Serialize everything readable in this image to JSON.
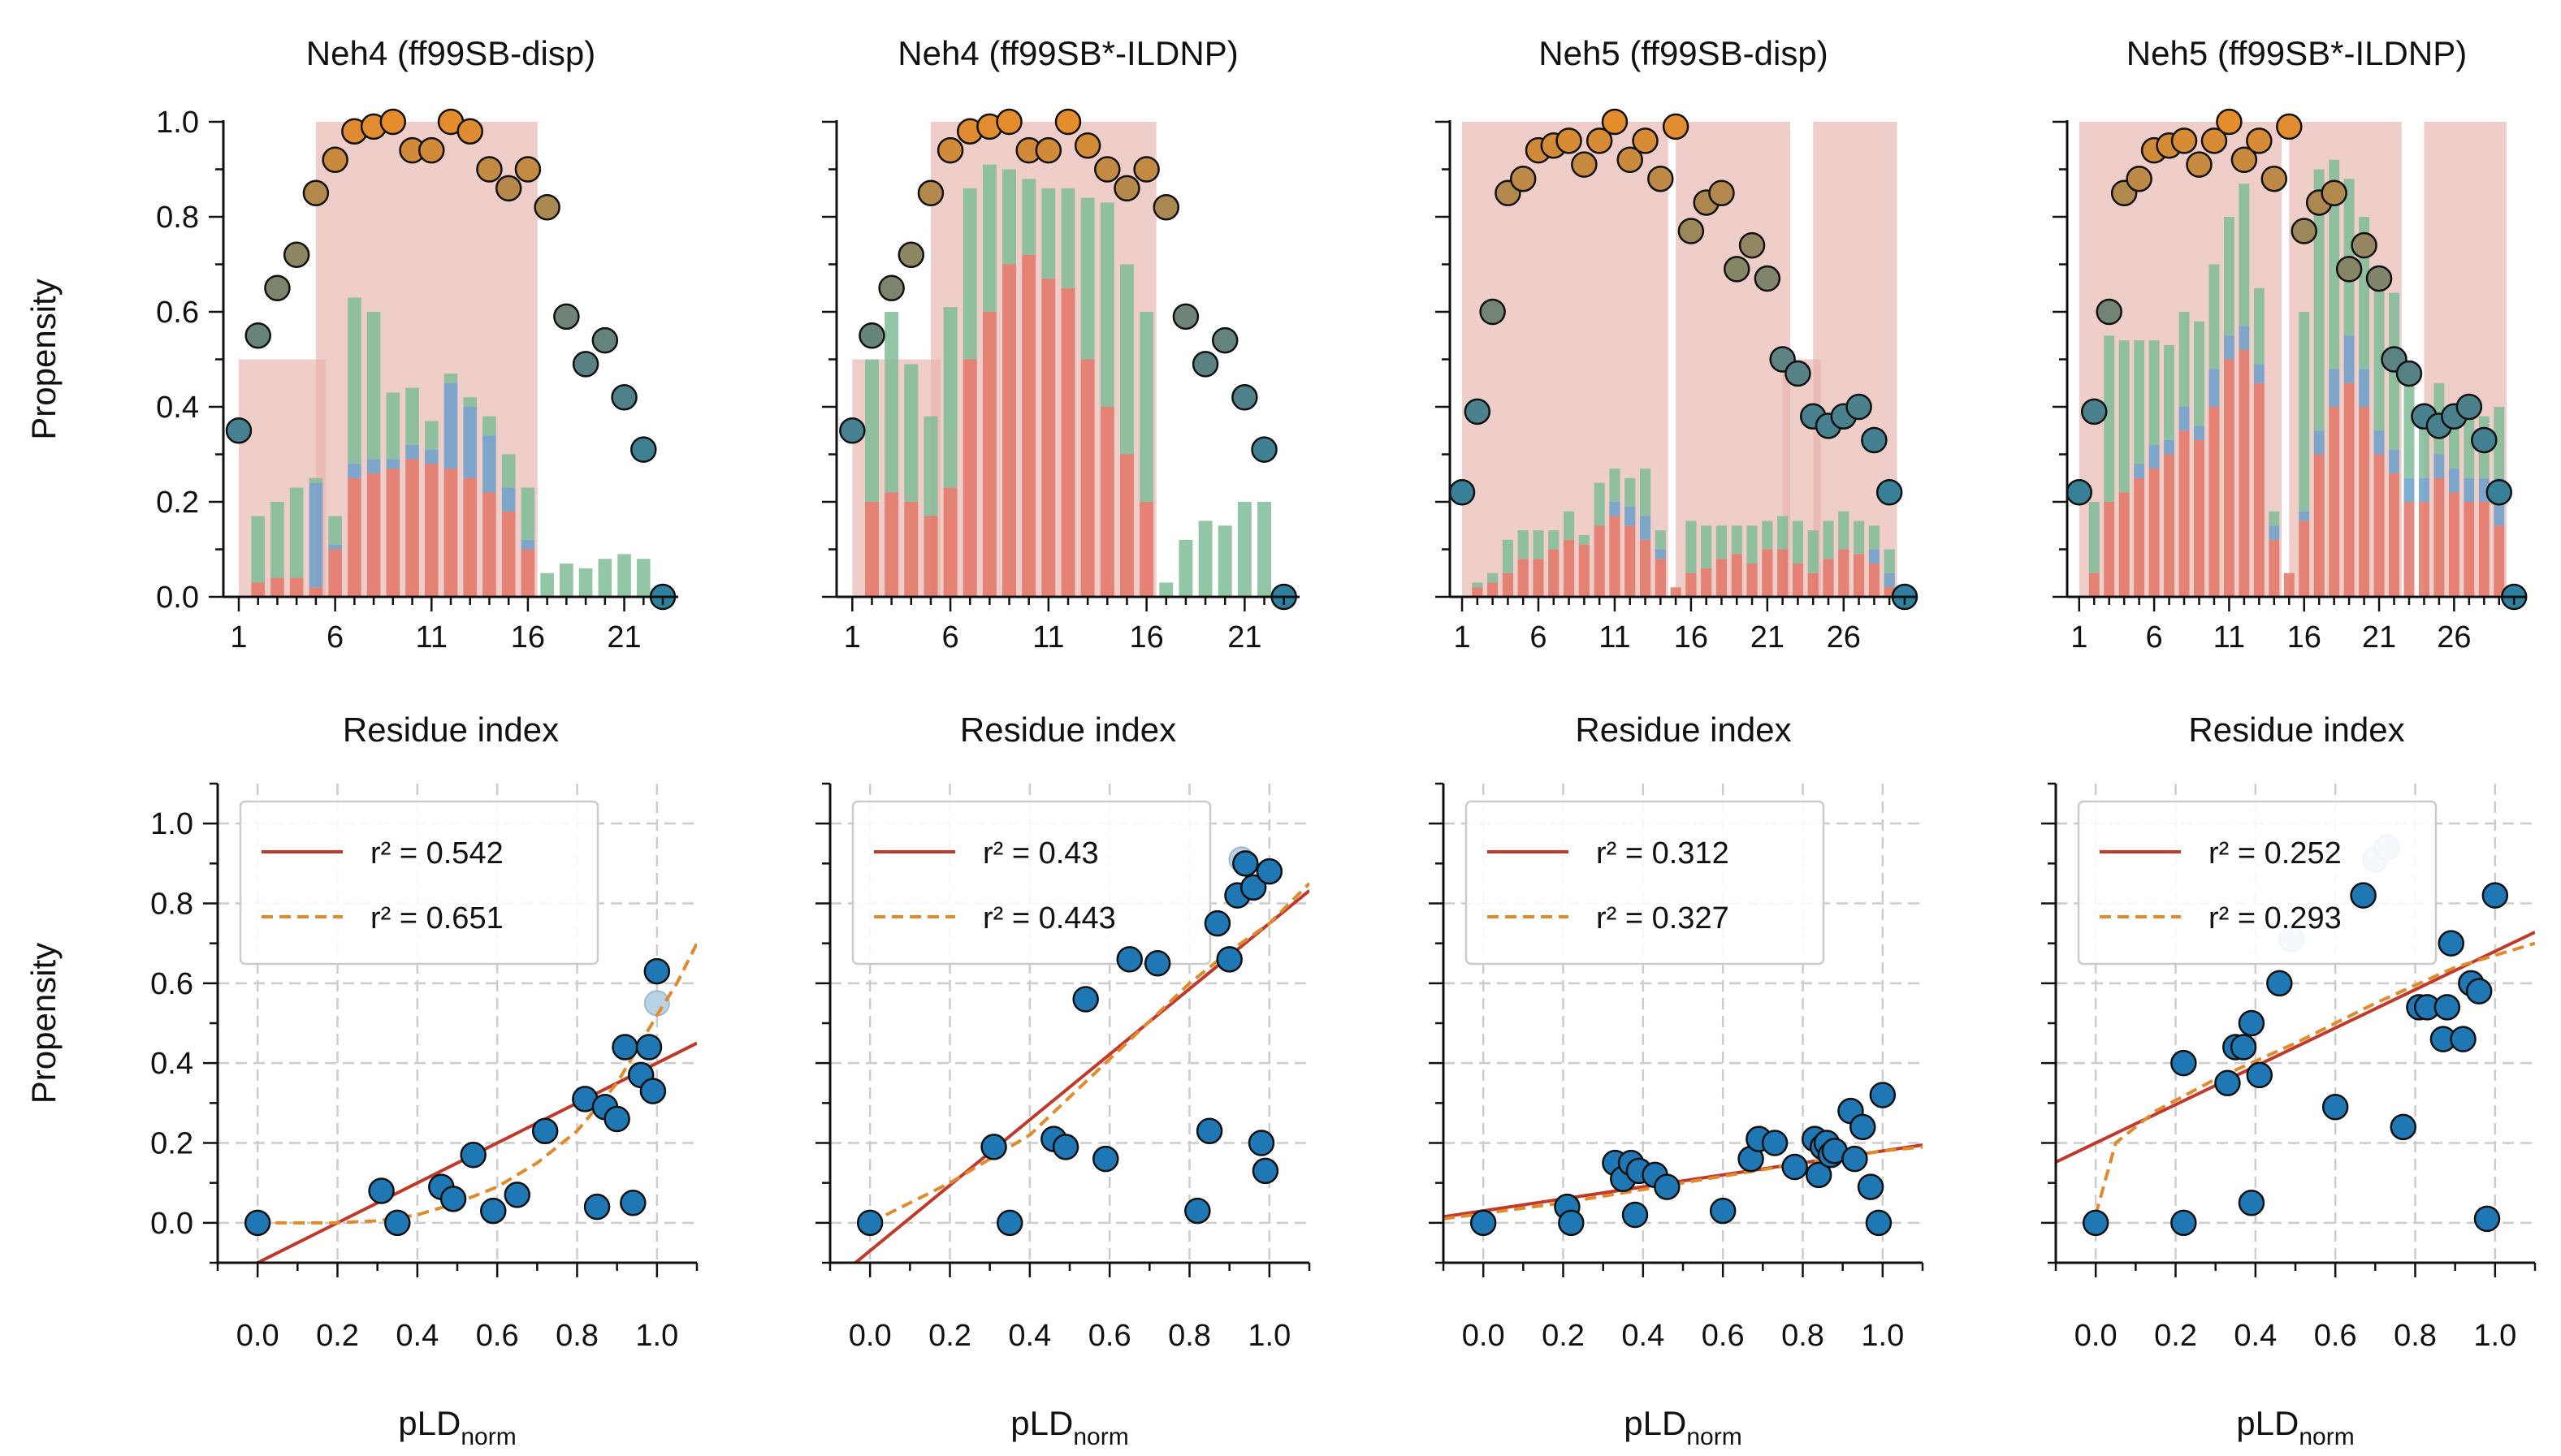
{
  "colors": {
    "helix": "#e07466",
    "turn": "#6a9fca",
    "coil": "#7fbc98",
    "domain_band": "#e7b2aa",
    "dot_low": "#2f7f9e",
    "dot_high": "#e58c2c",
    "scatter_point": "#1f77b4",
    "fit_linear": "#c0392b",
    "fit_other": "#e08a2c",
    "axis": "#111111",
    "grid": "#cccccc"
  },
  "y_tick_labels": [
    "0.0",
    "0.2",
    "0.4",
    "0.6",
    "0.8",
    "1.0"
  ],
  "x_tick_labels_scatter": [
    "0.0",
    "0.2",
    "0.4",
    "0.6",
    "0.8",
    "1.0"
  ],
  "chart_data": [
    {
      "type": "bar",
      "title": "Neh4 (ff99SB-disp)",
      "xlabel": "Residue index",
      "ylabel": "Propensity",
      "ylim": [
        0,
        1.0
      ],
      "xticks": [
        1,
        6,
        11,
        16,
        21
      ],
      "residues": [
        1,
        2,
        3,
        4,
        5,
        6,
        7,
        8,
        9,
        10,
        11,
        12,
        13,
        14,
        15,
        16,
        17,
        18,
        19,
        20,
        21,
        22,
        23
      ],
      "series": [
        {
          "name": "helix",
          "values": [
            0,
            0.03,
            0.04,
            0.04,
            0.02,
            0.1,
            0.25,
            0.26,
            0.27,
            0.29,
            0.28,
            0.27,
            0.25,
            0.22,
            0.18,
            0.1,
            0,
            0,
            0,
            0,
            0,
            0,
            0
          ]
        },
        {
          "name": "turn",
          "values": [
            0,
            0,
            0,
            0,
            0.22,
            0.01,
            0.03,
            0.03,
            0.02,
            0.03,
            0.03,
            0.18,
            0.15,
            0.12,
            0.05,
            0.02,
            0,
            0,
            0,
            0,
            0,
            0,
            0
          ]
        },
        {
          "name": "coil",
          "values": [
            0,
            0.14,
            0.16,
            0.19,
            0.01,
            0.06,
            0.35,
            0.31,
            0.14,
            0.12,
            0.06,
            0.02,
            0.02,
            0.04,
            0.07,
            0.11,
            0.05,
            0.07,
            0.06,
            0.08,
            0.09,
            0.08,
            0
          ]
        }
      ],
      "propensity": [
        0.35,
        0.55,
        0.65,
        0.72,
        0.85,
        0.92,
        0.98,
        0.99,
        1.0,
        0.94,
        0.94,
        1.0,
        0.98,
        0.9,
        0.86,
        0.9,
        0.82,
        0.59,
        0.49,
        0.54,
        0.42,
        0.31,
        0.0
      ],
      "domain_bands": [
        {
          "from": 1,
          "to": 5,
          "value": 0.5
        },
        {
          "from": 5,
          "to": 16,
          "value": 1.0
        }
      ]
    },
    {
      "type": "bar",
      "title": "Neh4 (ff99SB*-ILDNP)",
      "xlabel": "Residue index",
      "ylabel": "",
      "ylim": [
        0,
        1.0
      ],
      "xticks": [
        1,
        6,
        11,
        16,
        21
      ],
      "residues": [
        1,
        2,
        3,
        4,
        5,
        6,
        7,
        8,
        9,
        10,
        11,
        12,
        13,
        14,
        15,
        16,
        17,
        18,
        19,
        20,
        21,
        22,
        23
      ],
      "series": [
        {
          "name": "helix",
          "values": [
            0,
            0.2,
            0.22,
            0.2,
            0.17,
            0.23,
            0.5,
            0.6,
            0.7,
            0.72,
            0.67,
            0.65,
            0.5,
            0.4,
            0.3,
            0.2,
            0,
            0,
            0,
            0,
            0,
            0,
            0
          ]
        },
        {
          "name": "turn",
          "values": [
            0,
            0,
            0,
            0,
            0,
            0,
            0,
            0,
            0,
            0,
            0,
            0,
            0,
            0,
            0,
            0,
            0,
            0,
            0,
            0,
            0,
            0,
            0
          ]
        },
        {
          "name": "coil",
          "values": [
            0,
            0.3,
            0.38,
            0.29,
            0.21,
            0.38,
            0.36,
            0.31,
            0.2,
            0.16,
            0.19,
            0.21,
            0.34,
            0.43,
            0.4,
            0.4,
            0.03,
            0.12,
            0.16,
            0.15,
            0.2,
            0.2,
            0
          ]
        }
      ],
      "propensity": [
        0.35,
        0.55,
        0.65,
        0.72,
        0.85,
        0.94,
        0.98,
        0.99,
        1.0,
        0.94,
        0.94,
        1.0,
        0.95,
        0.9,
        0.86,
        0.9,
        0.82,
        0.59,
        0.49,
        0.54,
        0.42,
        0.31,
        0.0
      ],
      "domain_bands": [
        {
          "from": 1,
          "to": 5,
          "value": 0.5
        },
        {
          "from": 5,
          "to": 16,
          "value": 1.0
        }
      ]
    },
    {
      "type": "bar",
      "title": "Neh5 (ff99SB-disp)",
      "xlabel": "Residue index",
      "ylabel": "",
      "ylim": [
        0,
        1.0
      ],
      "xticks": [
        1,
        6,
        11,
        16,
        21,
        26
      ],
      "residues": [
        1,
        2,
        3,
        4,
        5,
        6,
        7,
        8,
        9,
        10,
        11,
        12,
        13,
        14,
        15,
        16,
        17,
        18,
        19,
        20,
        21,
        22,
        23,
        24,
        25,
        26,
        27,
        28,
        29,
        30
      ],
      "series": [
        {
          "name": "helix",
          "values": [
            0,
            0.02,
            0.03,
            0.05,
            0.08,
            0.08,
            0.1,
            0.12,
            0.11,
            0.15,
            0.17,
            0.15,
            0.12,
            0.08,
            0.02,
            0.05,
            0.06,
            0.08,
            0.09,
            0.07,
            0.1,
            0.1,
            0.07,
            0.05,
            0.08,
            0.1,
            0.09,
            0.07,
            0.02,
            0
          ]
        },
        {
          "name": "turn",
          "values": [
            0,
            0,
            0,
            0,
            0,
            0,
            0,
            0,
            0,
            0,
            0.03,
            0.04,
            0.05,
            0.02,
            0,
            0,
            0,
            0,
            0,
            0,
            0,
            0,
            0,
            0,
            0,
            0,
            0,
            0.03,
            0.03,
            0
          ]
        },
        {
          "name": "coil",
          "values": [
            0,
            0.01,
            0.02,
            0.07,
            0.06,
            0.06,
            0.04,
            0.06,
            0.02,
            0.09,
            0.07,
            0.06,
            0.1,
            0.04,
            0,
            0.11,
            0.09,
            0.07,
            0.06,
            0.08,
            0.06,
            0.07,
            0.09,
            0.09,
            0.08,
            0.08,
            0.07,
            0.05,
            0.05,
            0
          ]
        }
      ],
      "propensity": [
        0.22,
        0.39,
        0.6,
        0.85,
        0.88,
        0.94,
        0.95,
        0.96,
        0.91,
        0.96,
        1.0,
        0.92,
        0.96,
        0.88,
        0.99,
        0.77,
        0.83,
        0.85,
        0.69,
        0.74,
        0.67,
        0.5,
        0.47,
        0.38,
        0.36,
        0.38,
        0.4,
        0.33,
        0.22,
        0.0
      ],
      "domain_bands": [
        {
          "from": 1,
          "to": 14,
          "value": 1.0
        },
        {
          "from": 15,
          "to": 22,
          "value": 1.0
        },
        {
          "from": 22,
          "to": 24,
          "value": 0.5
        },
        {
          "from": 24,
          "to": 29,
          "value": 1.0
        }
      ]
    },
    {
      "type": "bar",
      "title": "Neh5 (ff99SB*-ILDNP)",
      "xlabel": "Residue index",
      "ylabel": "",
      "ylim": [
        0,
        1.0
      ],
      "xticks": [
        1,
        6,
        11,
        16,
        21,
        26
      ],
      "residues": [
        1,
        2,
        3,
        4,
        5,
        6,
        7,
        8,
        9,
        10,
        11,
        12,
        13,
        14,
        15,
        16,
        17,
        18,
        19,
        20,
        21,
        22,
        23,
        24,
        25,
        26,
        27,
        28,
        29,
        30
      ],
      "series": [
        {
          "name": "helix",
          "values": [
            0,
            0.05,
            0.2,
            0.22,
            0.25,
            0.27,
            0.3,
            0.35,
            0.33,
            0.4,
            0.5,
            0.52,
            0.45,
            0.12,
            0.05,
            0.16,
            0.3,
            0.4,
            0.45,
            0.4,
            0.3,
            0.26,
            0.2,
            0.2,
            0.25,
            0.22,
            0.2,
            0.2,
            0.15,
            0
          ]
        },
        {
          "name": "turn",
          "values": [
            0,
            0,
            0,
            0,
            0.03,
            0.05,
            0.03,
            0.05,
            0.03,
            0.08,
            0.05,
            0.05,
            0.04,
            0.03,
            0,
            0.02,
            0.05,
            0.08,
            0.1,
            0.08,
            0.05,
            0.05,
            0.05,
            0.05,
            0.05,
            0.05,
            0.05,
            0.05,
            0.1,
            0
          ]
        },
        {
          "name": "coil",
          "values": [
            0,
            0.15,
            0.35,
            0.32,
            0.26,
            0.22,
            0.2,
            0.2,
            0.22,
            0.22,
            0.25,
            0.3,
            0.16,
            0.03,
            0,
            0.42,
            0.55,
            0.44,
            0.33,
            0.32,
            0.3,
            0.33,
            0.2,
            0.15,
            0.15,
            0.13,
            0.13,
            0.13,
            0.15,
            0
          ]
        }
      ],
      "propensity": [
        0.22,
        0.39,
        0.6,
        0.85,
        0.88,
        0.94,
        0.95,
        0.96,
        0.91,
        0.96,
        1.0,
        0.92,
        0.96,
        0.88,
        0.99,
        0.77,
        0.83,
        0.85,
        0.69,
        0.74,
        0.67,
        0.5,
        0.47,
        0.38,
        0.36,
        0.38,
        0.4,
        0.33,
        0.22,
        0.0
      ],
      "domain_bands": [
        {
          "from": 1,
          "to": 14,
          "value": 1.0
        },
        {
          "from": 15,
          "to": 22,
          "value": 1.0
        },
        {
          "from": 24,
          "to": 29,
          "value": 1.0
        }
      ]
    },
    {
      "type": "scatter",
      "xlabel": "pLD",
      "xlabel_sub": "norm",
      "ylabel": "Propensity",
      "xlim": [
        -0.1,
        1.1
      ],
      "ylim": [
        -0.1,
        1.1
      ],
      "points": {
        "x": [
          0.0,
          0.31,
          0.35,
          0.46,
          0.49,
          0.54,
          0.59,
          0.65,
          0.72,
          0.82,
          0.85,
          0.87,
          0.9,
          0.92,
          0.94,
          0.96,
          0.98,
          0.99,
          1.0
        ],
        "y": [
          0.0,
          0.08,
          0.0,
          0.09,
          0.06,
          0.17,
          0.03,
          0.07,
          0.23,
          0.31,
          0.04,
          0.29,
          0.26,
          0.44,
          0.05,
          0.37,
          0.44,
          0.33,
          0.63
        ]
      },
      "extra_points": {
        "x": [
          1.0
        ],
        "y": [
          0.55
        ]
      },
      "fit_linear": {
        "slope": 0.5,
        "intercept": -0.1
      },
      "fit_other_curve": [
        [
          0.0,
          0.0
        ],
        [
          0.2,
          0.0
        ],
        [
          0.3,
          0.005
        ],
        [
          0.4,
          0.02
        ],
        [
          0.5,
          0.05
        ],
        [
          0.6,
          0.09
        ],
        [
          0.7,
          0.15
        ],
        [
          0.8,
          0.23
        ],
        [
          0.9,
          0.35
        ],
        [
          1.0,
          0.52
        ],
        [
          1.05,
          0.6
        ],
        [
          1.1,
          0.7
        ]
      ],
      "legend": [
        {
          "label": "r² = 0.542",
          "style": "solid"
        },
        {
          "label": "r² = 0.651",
          "style": "dashed"
        }
      ]
    },
    {
      "type": "scatter",
      "xlabel": "pLD",
      "xlabel_sub": "norm",
      "ylabel": "",
      "xlim": [
        -0.1,
        1.1
      ],
      "ylim": [
        -0.1,
        1.1
      ],
      "points": {
        "x": [
          0.0,
          0.31,
          0.35,
          0.46,
          0.49,
          0.54,
          0.59,
          0.65,
          0.72,
          0.82,
          0.85,
          0.87,
          0.9,
          0.92,
          0.94,
          0.96,
          0.98,
          0.99,
          1.0
        ],
        "y": [
          0.0,
          0.19,
          0.0,
          0.21,
          0.19,
          0.56,
          0.16,
          0.66,
          0.65,
          0.03,
          0.23,
          0.75,
          0.66,
          0.82,
          0.9,
          0.84,
          0.2,
          0.13,
          0.88
        ]
      },
      "extra_points": {
        "x": [
          0.93
        ],
        "y": [
          0.91
        ]
      },
      "fit_linear": {
        "slope": 0.82,
        "intercept": -0.07
      },
      "fit_other_curve": [
        [
          0.0,
          0.0
        ],
        [
          0.2,
          0.1
        ],
        [
          0.4,
          0.22
        ],
        [
          0.6,
          0.41
        ],
        [
          0.8,
          0.6
        ],
        [
          0.9,
          0.68
        ],
        [
          1.0,
          0.75
        ],
        [
          1.1,
          0.85
        ]
      ],
      "legend": [
        {
          "label": "r² = 0.43",
          "style": "solid"
        },
        {
          "label": "r² = 0.443",
          "style": "dashed"
        }
      ]
    },
    {
      "type": "scatter",
      "xlabel": "pLD",
      "xlabel_sub": "norm",
      "ylabel": "",
      "xlim": [
        -0.1,
        1.1
      ],
      "ylim": [
        -0.1,
        1.1
      ],
      "points": {
        "x": [
          0.0,
          0.21,
          0.22,
          0.33,
          0.35,
          0.37,
          0.38,
          0.39,
          0.43,
          0.46,
          0.6,
          0.67,
          0.69,
          0.73,
          0.78,
          0.83,
          0.84,
          0.85,
          0.86,
          0.87,
          0.88,
          0.92,
          0.93,
          0.95,
          0.97,
          0.99,
          1.0
        ],
        "y": [
          0.0,
          0.04,
          0.0,
          0.15,
          0.11,
          0.15,
          0.02,
          0.13,
          0.12,
          0.09,
          0.03,
          0.16,
          0.21,
          0.2,
          0.14,
          0.21,
          0.12,
          0.19,
          0.2,
          0.17,
          0.18,
          0.28,
          0.16,
          0.24,
          0.09,
          0.0,
          0.32
        ]
      },
      "extra_points": {
        "x": [],
        "y": []
      },
      "fit_linear": {
        "slope": 0.15,
        "intercept": 0.03
      },
      "fit_other_curve": [
        [
          -0.1,
          0.01
        ],
        [
          0.2,
          0.05
        ],
        [
          0.5,
          0.1
        ],
        [
          0.8,
          0.15
        ],
        [
          1.0,
          0.18
        ],
        [
          1.1,
          0.19
        ]
      ],
      "legend": [
        {
          "label": "r² = 0.312",
          "style": "solid"
        },
        {
          "label": "r² = 0.327",
          "style": "dashed"
        }
      ]
    },
    {
      "type": "scatter",
      "xlabel": "pLD",
      "xlabel_sub": "norm",
      "ylabel": "",
      "xlim": [
        -0.1,
        1.1
      ],
      "ylim": [
        -0.1,
        1.1
      ],
      "points": {
        "x": [
          0.0,
          0.22,
          0.22,
          0.33,
          0.35,
          0.37,
          0.39,
          0.39,
          0.41,
          0.46,
          0.6,
          0.67,
          0.77,
          0.81,
          0.83,
          0.87,
          0.88,
          0.89,
          0.92,
          0.94,
          0.96,
          0.98,
          1.0
        ],
        "y": [
          0.0,
          0.4,
          0.0,
          0.35,
          0.44,
          0.44,
          0.05,
          0.5,
          0.37,
          0.6,
          0.29,
          0.82,
          0.24,
          0.54,
          0.54,
          0.46,
          0.54,
          0.7,
          0.46,
          0.6,
          0.58,
          0.01,
          0.82
        ]
      },
      "extra_points": {
        "x": [
          0.49,
          0.67,
          0.7,
          0.73
        ],
        "y": [
          0.71,
          0.81,
          0.91,
          0.94
        ]
      },
      "fit_linear": {
        "slope": 0.48,
        "intercept": 0.2
      },
      "fit_other_curve": [
        [
          0.0,
          0.02
        ],
        [
          0.05,
          0.2
        ],
        [
          0.15,
          0.28
        ],
        [
          0.3,
          0.36
        ],
        [
          0.5,
          0.45
        ],
        [
          0.7,
          0.55
        ],
        [
          0.9,
          0.64
        ],
        [
          1.1,
          0.7
        ]
      ],
      "legend": [
        {
          "label": "r² = 0.252",
          "style": "solid"
        },
        {
          "label": "r² = 0.293",
          "style": "dashed"
        }
      ]
    }
  ]
}
